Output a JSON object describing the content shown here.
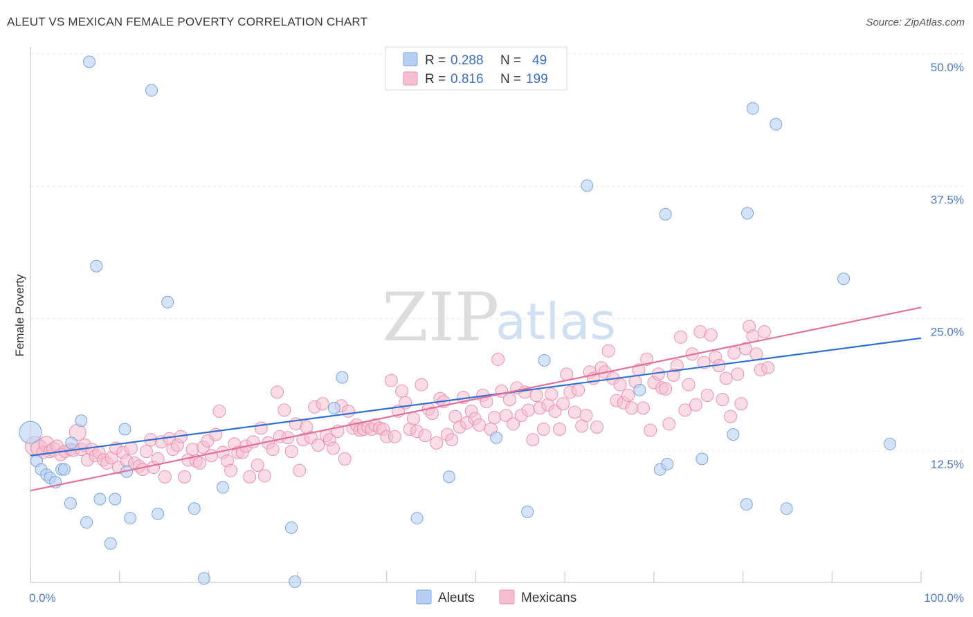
{
  "title": "ALEUT VS MEXICAN FEMALE POVERTY CORRELATION CHART",
  "source": "Source: ZipAtlas.com",
  "watermark": {
    "zip": "ZIP",
    "atlas": "atlas"
  },
  "colors": {
    "aleut_fill": "#b7d0f2",
    "aleut_stroke": "#7aa4de",
    "aleut_line": "#2f6fd0",
    "mex_fill": "#f6bfd0",
    "mex_stroke": "#eb8fae",
    "mex_line": "#e0709a"
  },
  "legend": {
    "rows": [
      {
        "r_label": "R =",
        "r_value": "0.288",
        "n_label": "N =",
        "n_value": "49"
      },
      {
        "r_label": "R =",
        "r_value": "0.816",
        "n_label": "N =",
        "n_value": "199"
      }
    ]
  },
  "bottom_legend": [
    "Aleuts",
    "Mexicans"
  ],
  "chart_data": {
    "type": "scatter",
    "ylabel": "Female Poverty",
    "xlim": [
      0,
      100
    ],
    "ylim": [
      0,
      50
    ],
    "x_tick_labels": [
      "0.0%",
      "100.0%"
    ],
    "y_ticks": [
      {
        "value": 50,
        "label": "50.0%"
      },
      {
        "value": 37.5,
        "label": "37.5%"
      },
      {
        "value": 25,
        "label": "25.0%"
      },
      {
        "value": 12.5,
        "label": "12.5%"
      }
    ],
    "grid": true,
    "series": [
      {
        "name": "Aleuts",
        "trend": {
          "x0": 0,
          "y0": 13.3,
          "x1": 100,
          "y1": 24.4
        },
        "points": [
          [
            0,
            15.5
          ],
          [
            0.7,
            12.8
          ],
          [
            1.2,
            12.0
          ],
          [
            1.8,
            11.5
          ],
          [
            2.2,
            11.2
          ],
          [
            2.8,
            10.8
          ],
          [
            3.5,
            12.0
          ],
          [
            3.8,
            12.0
          ],
          [
            4.5,
            8.8
          ],
          [
            4.6,
            14.5
          ],
          [
            5.7,
            16.6
          ],
          [
            6.3,
            7.0
          ],
          [
            6.6,
            50.5
          ],
          [
            7.4,
            31.2
          ],
          [
            7.8,
            9.2
          ],
          [
            9.0,
            5.0
          ],
          [
            9.5,
            9.2
          ],
          [
            10.6,
            15.8
          ],
          [
            10.8,
            11.8
          ],
          [
            11.2,
            7.4
          ],
          [
            13.6,
            47.8
          ],
          [
            14.3,
            7.8
          ],
          [
            15.4,
            27.8
          ],
          [
            18.4,
            8.3
          ],
          [
            19.5,
            1.7
          ],
          [
            21.6,
            10.3
          ],
          [
            29.3,
            6.5
          ],
          [
            29.7,
            1.4
          ],
          [
            34.1,
            17.8
          ],
          [
            35.0,
            20.7
          ],
          [
            43.4,
            7.4
          ],
          [
            47.0,
            11.3
          ],
          [
            52.3,
            15.0
          ],
          [
            55.8,
            8.0
          ],
          [
            57.7,
            22.3
          ],
          [
            62.5,
            38.8
          ],
          [
            68.4,
            19.5
          ],
          [
            70.7,
            12.0
          ],
          [
            71.3,
            36.1
          ],
          [
            71.5,
            12.5
          ],
          [
            75.4,
            13.0
          ],
          [
            78.9,
            15.3
          ],
          [
            80.4,
            8.7
          ],
          [
            80.5,
            36.2
          ],
          [
            81.1,
            46.1
          ],
          [
            83.7,
            44.6
          ],
          [
            84.9,
            8.3
          ],
          [
            91.3,
            30.0
          ],
          [
            96.5,
            14.4
          ]
        ]
      },
      {
        "name": "Mexicans",
        "trend": {
          "x0": 0,
          "y0": 10.0,
          "x1": 100,
          "y1": 27.3
        },
        "points": [
          [
            0.5,
            14.2
          ],
          [
            1.0,
            14.0
          ],
          [
            1.4,
            13.6
          ],
          [
            1.8,
            14.4
          ],
          [
            2.2,
            13.7
          ],
          [
            2.6,
            13.9
          ],
          [
            3.0,
            14.2
          ],
          [
            3.4,
            13.4
          ],
          [
            3.9,
            13.7
          ],
          [
            4.5,
            13.9
          ],
          [
            4.8,
            13.8
          ],
          [
            5.3,
            15.5
          ],
          [
            5.7,
            13.9
          ],
          [
            6.1,
            14.3
          ],
          [
            6.4,
            12.9
          ],
          [
            6.9,
            13.9
          ],
          [
            7.3,
            13.3
          ],
          [
            7.7,
            13.6
          ],
          [
            8.2,
            12.9
          ],
          [
            8.6,
            12.6
          ],
          [
            9.1,
            13.1
          ],
          [
            9.6,
            14.0
          ],
          [
            9.9,
            12.2
          ],
          [
            10.4,
            13.6
          ],
          [
            10.8,
            12.8
          ],
          [
            11.3,
            14.0
          ],
          [
            11.7,
            12.6
          ],
          [
            12.2,
            12.3
          ],
          [
            12.6,
            12.0
          ],
          [
            13.0,
            13.7
          ],
          [
            13.5,
            14.8
          ],
          [
            13.8,
            12.2
          ],
          [
            14.3,
            13.0
          ],
          [
            14.7,
            14.6
          ],
          [
            15.1,
            11.3
          ],
          [
            15.6,
            14.9
          ],
          [
            16.0,
            13.9
          ],
          [
            16.5,
            14.3
          ],
          [
            16.9,
            15.1
          ],
          [
            17.3,
            11.3
          ],
          [
            17.7,
            12.9
          ],
          [
            18.2,
            13.9
          ],
          [
            18.6,
            12.8
          ],
          [
            19.0,
            12.6
          ],
          [
            19.4,
            14.1
          ],
          [
            19.9,
            14.7
          ],
          [
            20.3,
            13.3
          ],
          [
            20.8,
            15.3
          ],
          [
            21.2,
            17.5
          ],
          [
            21.6,
            13.6
          ],
          [
            22.1,
            12.8
          ],
          [
            22.5,
            11.9
          ],
          [
            22.9,
            14.4
          ],
          [
            23.3,
            13.6
          ],
          [
            23.8,
            13.6
          ],
          [
            24.2,
            14.2
          ],
          [
            24.6,
            11.3
          ],
          [
            25.0,
            14.6
          ],
          [
            25.5,
            12.4
          ],
          [
            25.9,
            15.9
          ],
          [
            26.3,
            11.4
          ],
          [
            26.7,
            14.5
          ],
          [
            27.2,
            13.9
          ],
          [
            27.7,
            19.3
          ],
          [
            28.0,
            15.1
          ],
          [
            28.5,
            17.6
          ],
          [
            28.9,
            15.0
          ],
          [
            29.3,
            13.7
          ],
          [
            29.8,
            16.3
          ],
          [
            30.2,
            11.9
          ],
          [
            30.6,
            14.8
          ],
          [
            31.0,
            16.0
          ],
          [
            31.5,
            15.0
          ],
          [
            31.9,
            17.9
          ],
          [
            32.3,
            14.3
          ],
          [
            32.8,
            18.2
          ],
          [
            33.2,
            15.2
          ],
          [
            33.6,
            14.8
          ],
          [
            34.0,
            14.0
          ],
          [
            34.5,
            15.6
          ],
          [
            34.9,
            18.0
          ],
          [
            35.3,
            13.0
          ],
          [
            35.7,
            17.5
          ],
          [
            36.2,
            15.9
          ],
          [
            36.6,
            16.2
          ],
          [
            37.0,
            15.7
          ],
          [
            37.4,
            15.8
          ],
          [
            37.9,
            16.0
          ],
          [
            38.3,
            15.8
          ],
          [
            38.7,
            16.2
          ],
          [
            39.2,
            15.9
          ],
          [
            39.6,
            15.8
          ],
          [
            40.0,
            15.1
          ],
          [
            40.5,
            20.4
          ],
          [
            40.9,
            15.1
          ],
          [
            41.3,
            17.5
          ],
          [
            41.7,
            19.4
          ],
          [
            42.1,
            18.3
          ],
          [
            42.6,
            15.8
          ],
          [
            43.0,
            16.8
          ],
          [
            43.4,
            15.6
          ],
          [
            43.9,
            20.0
          ],
          [
            44.3,
            15.2
          ],
          [
            44.7,
            17.7
          ],
          [
            45.1,
            17.3
          ],
          [
            45.6,
            14.5
          ],
          [
            46.0,
            18.7
          ],
          [
            46.4,
            18.4
          ],
          [
            46.8,
            15.3
          ],
          [
            47.3,
            14.8
          ],
          [
            47.7,
            17.0
          ],
          [
            48.2,
            16.0
          ],
          [
            48.6,
            18.8
          ],
          [
            49.0,
            16.4
          ],
          [
            49.5,
            17.5
          ],
          [
            49.9,
            16.8
          ],
          [
            50.4,
            16.2
          ],
          [
            50.8,
            19.0
          ],
          [
            51.2,
            18.4
          ],
          [
            51.7,
            15.8
          ],
          [
            52.1,
            16.9
          ],
          [
            52.5,
            22.4
          ],
          [
            52.9,
            19.4
          ],
          [
            53.4,
            17.1
          ],
          [
            53.8,
            18.6
          ],
          [
            54.2,
            16.3
          ],
          [
            54.6,
            19.7
          ],
          [
            55.1,
            17.1
          ],
          [
            55.5,
            19.3
          ],
          [
            55.9,
            17.6
          ],
          [
            56.4,
            14.8
          ],
          [
            56.8,
            19.0
          ],
          [
            57.2,
            17.8
          ],
          [
            57.6,
            15.8
          ],
          [
            58.1,
            18.1
          ],
          [
            58.5,
            19.1
          ],
          [
            58.9,
            17.5
          ],
          [
            59.4,
            15.8
          ],
          [
            59.8,
            18.2
          ],
          [
            60.2,
            21.0
          ],
          [
            60.6,
            19.3
          ],
          [
            61.1,
            17.4
          ],
          [
            61.5,
            19.5
          ],
          [
            61.9,
            16.1
          ],
          [
            62.4,
            17.1
          ],
          [
            62.8,
            21.2
          ],
          [
            63.2,
            20.6
          ],
          [
            63.6,
            16.0
          ],
          [
            64.1,
            21.6
          ],
          [
            64.5,
            21.2
          ],
          [
            64.9,
            23.2
          ],
          [
            65.4,
            20.6
          ],
          [
            65.8,
            18.5
          ],
          [
            66.2,
            20.0
          ],
          [
            66.6,
            18.3
          ],
          [
            67.1,
            19.0
          ],
          [
            67.5,
            17.8
          ],
          [
            67.9,
            20.3
          ],
          [
            68.3,
            21.4
          ],
          [
            68.8,
            17.8
          ],
          [
            69.2,
            22.4
          ],
          [
            69.6,
            15.7
          ],
          [
            70.0,
            20.2
          ],
          [
            70.5,
            21.0
          ],
          [
            70.9,
            19.7
          ],
          [
            71.3,
            19.6
          ],
          [
            71.7,
            16.3
          ],
          [
            72.2,
            20.9
          ],
          [
            72.6,
            21.8
          ],
          [
            73.0,
            24.5
          ],
          [
            73.5,
            17.6
          ],
          [
            73.9,
            20.0
          ],
          [
            74.3,
            22.9
          ],
          [
            74.7,
            18.1
          ],
          [
            75.2,
            25.0
          ],
          [
            75.6,
            22.1
          ],
          [
            76.0,
            19.0
          ],
          [
            76.4,
            24.7
          ],
          [
            76.9,
            22.6
          ],
          [
            77.3,
            21.8
          ],
          [
            77.7,
            18.6
          ],
          [
            78.1,
            20.6
          ],
          [
            78.6,
            17.0
          ],
          [
            79.0,
            23.0
          ],
          [
            79.4,
            21.0
          ],
          [
            79.8,
            18.2
          ],
          [
            80.3,
            23.4
          ],
          [
            80.7,
            25.5
          ],
          [
            81.1,
            24.6
          ],
          [
            81.5,
            22.9
          ],
          [
            82.0,
            21.4
          ],
          [
            82.4,
            25.0
          ],
          [
            82.8,
            21.6
          ]
        ]
      }
    ]
  }
}
